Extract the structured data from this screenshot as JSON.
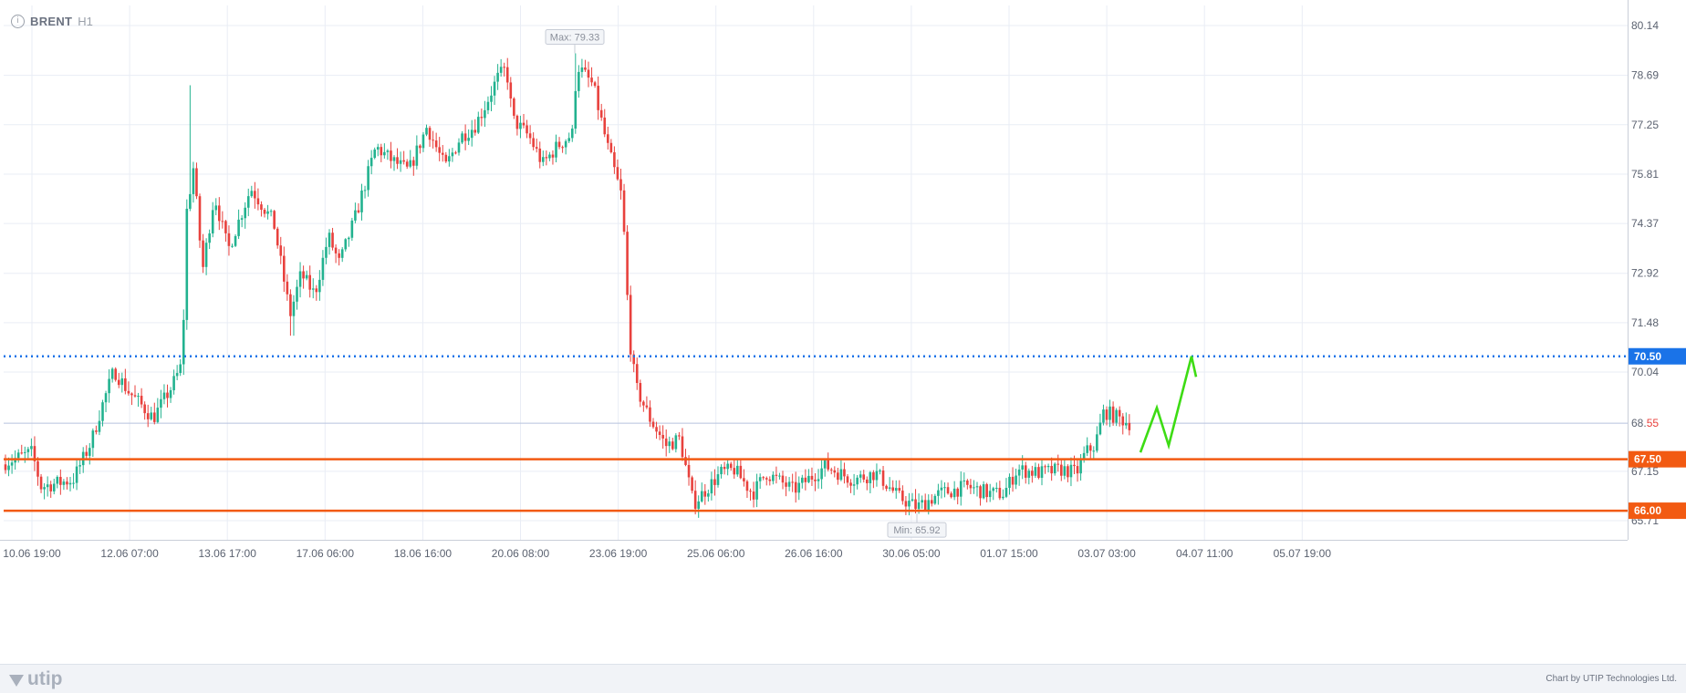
{
  "header": {
    "symbol": "BRENT",
    "timeframe": "H1"
  },
  "footer": {
    "logo_text": "utip",
    "credit": "Chart by UTIP Technologies Ltd."
  },
  "colors": {
    "up": "#22b28f",
    "down": "#e8413d",
    "grid": "#e9edf5",
    "blue_level": "#1a73e8",
    "orange_level": "#f25a12",
    "forecast": "#3ddc14",
    "axis_text": "#5b6270"
  },
  "chart_data": {
    "type": "candlestick",
    "symbol": "BRENT",
    "timeframe": "H1",
    "y_ticks": [
      "80.14",
      "78.69",
      "77.25",
      "75.81",
      "74.37",
      "72.92",
      "71.48",
      "70.04",
      "67.15",
      "65.71"
    ],
    "x_ticks": [
      "10.06 19:00",
      "12.06 07:00",
      "13.06 17:00",
      "17.06 06:00",
      "18.06 16:00",
      "20.06 08:00",
      "23.06 19:00",
      "25.06 06:00",
      "26.06 16:00",
      "30.06 05:00",
      "01.07 15:00",
      "03.07 03:00",
      "04.07 11:00",
      "05.07 19:00"
    ],
    "ylim": [
      65.5,
      80.4
    ],
    "current_price": {
      "value": 68.55,
      "label_main": "68.",
      "label_accent": "55"
    },
    "levels": [
      {
        "value": 70.5,
        "label": "70.50",
        "style": "dotted",
        "color": "#1a73e8"
      },
      {
        "value": 67.5,
        "label": "67.50",
        "style": "solid",
        "color": "#f25a12"
      },
      {
        "value": 66.0,
        "label": "66.00",
        "style": "solid",
        "color": "#f25a12"
      }
    ],
    "max_marker": {
      "value": 79.33,
      "label": "Max: 79.33"
    },
    "min_marker": {
      "value": 65.92,
      "label": "Min: 65.92"
    },
    "path": [
      [
        0,
        67.35
      ],
      [
        35,
        67.7
      ],
      [
        45,
        66.7
      ],
      [
        80,
        66.9
      ],
      [
        100,
        68.0
      ],
      [
        110,
        68.9
      ],
      [
        125,
        70.1
      ],
      [
        140,
        69.5
      ],
      [
        168,
        68.7
      ],
      [
        188,
        69.6
      ],
      [
        200,
        70.3
      ],
      [
        204,
        74.6
      ],
      [
        212,
        76.0
      ],
      [
        222,
        73.0
      ],
      [
        235,
        75.2
      ],
      [
        250,
        73.6
      ],
      [
        275,
        75.4
      ],
      [
        300,
        74.4
      ],
      [
        318,
        71.7
      ],
      [
        330,
        72.9
      ],
      [
        345,
        72.3
      ],
      [
        360,
        74.0
      ],
      [
        372,
        73.2
      ],
      [
        390,
        74.6
      ],
      [
        412,
        76.6
      ],
      [
        430,
        76.2
      ],
      [
        448,
        75.9
      ],
      [
        468,
        77.2
      ],
      [
        488,
        76.0
      ],
      [
        505,
        76.9
      ],
      [
        520,
        77.2
      ],
      [
        530,
        77.7
      ],
      [
        545,
        78.6
      ],
      [
        555,
        78.9
      ],
      [
        562,
        77.4
      ],
      [
        580,
        76.9
      ],
      [
        595,
        76.1
      ],
      [
        610,
        76.6
      ],
      [
        628,
        77.0
      ],
      [
        632,
        79.0
      ],
      [
        650,
        78.4
      ],
      [
        665,
        76.7
      ],
      [
        682,
        75.1
      ],
      [
        690,
        71.0
      ],
      [
        697,
        69.6
      ],
      [
        712,
        68.7
      ],
      [
        730,
        67.9
      ],
      [
        745,
        68.1
      ],
      [
        760,
        66.2
      ],
      [
        790,
        67.1
      ],
      [
        805,
        67.2
      ],
      [
        825,
        66.5
      ],
      [
        840,
        67.1
      ],
      [
        870,
        66.6
      ],
      [
        905,
        67.3
      ],
      [
        935,
        66.9
      ],
      [
        960,
        67.1
      ],
      [
        985,
        66.4
      ],
      [
        1005,
        66.1
      ],
      [
        1030,
        66.5
      ],
      [
        1060,
        66.7
      ],
      [
        1085,
        66.5
      ],
      [
        1100,
        66.5
      ],
      [
        1115,
        67.2
      ],
      [
        1140,
        67.1
      ],
      [
        1165,
        67.2
      ],
      [
        1180,
        67.1
      ],
      [
        1190,
        67.7
      ],
      [
        1200,
        67.9
      ],
      [
        1210,
        68.9
      ],
      [
        1222,
        68.75
      ],
      [
        1230,
        68.65
      ],
      [
        1238,
        68.55
      ]
    ],
    "forecast_path": [
      [
        1250,
        67.7
      ],
      [
        1268,
        69.0
      ],
      [
        1281,
        67.9
      ],
      [
        1306,
        70.5
      ],
      [
        1311,
        69.9
      ]
    ]
  }
}
